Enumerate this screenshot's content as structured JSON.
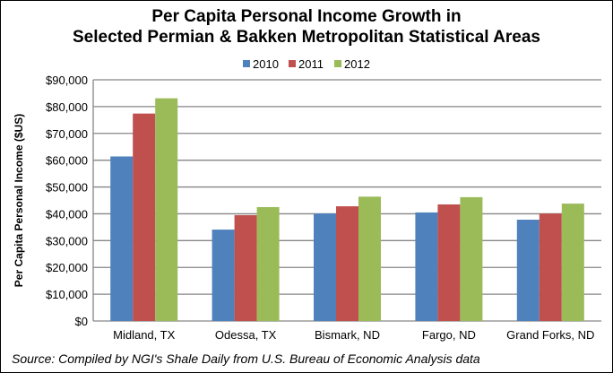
{
  "chart_data": {
    "type": "bar",
    "title_line1": "Per Capita Personal Income Growth in",
    "title_line2": "Selected Permian & Bakken Metropolitan Statistical Areas",
    "xlabel": "",
    "ylabel": "Per Capita Personal Income ($US)",
    "ylim": [
      0,
      90000
    ],
    "yticks": [
      0,
      10000,
      20000,
      30000,
      40000,
      50000,
      60000,
      70000,
      80000,
      90000
    ],
    "ytick_labels": [
      "$0",
      "$10,000",
      "$20,000",
      "$30,000",
      "$40,000",
      "$50,000",
      "$60,000",
      "$70,000",
      "$80,000",
      "$90,000"
    ],
    "grid": true,
    "legend_position": "top",
    "categories": [
      "Midland, TX",
      "Odessa, TX",
      "Bismark, ND",
      "Fargo, ND",
      "Grand Forks, ND"
    ],
    "series": [
      {
        "name": "2010",
        "color": "#4F81BD",
        "values": [
          61400,
          34100,
          40100,
          40500,
          37800
        ]
      },
      {
        "name": "2011",
        "color": "#C0504D",
        "values": [
          77400,
          39500,
          42800,
          43500,
          40100
        ]
      },
      {
        "name": "2012",
        "color": "#9BBB59",
        "values": [
          83100,
          42500,
          46400,
          46200,
          43800
        ]
      }
    ]
  },
  "source": "Source:  Compiled by NGI's Shale Daily from U.S. Bureau of Economic Analysis data"
}
